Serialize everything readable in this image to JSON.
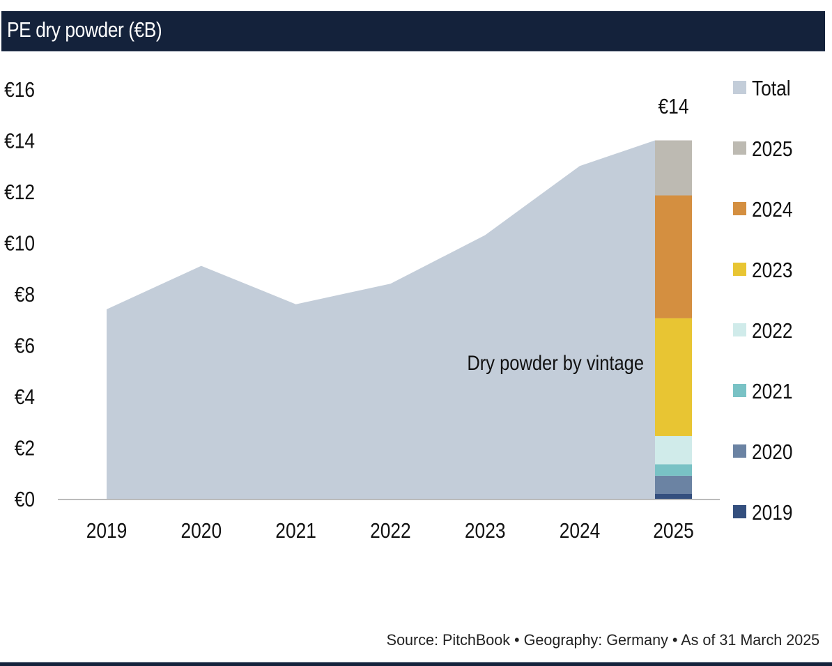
{
  "header": {
    "title": "PE dry powder (€B)"
  },
  "footer": {
    "source": "Source: PitchBook • Geography: Germany • As of 31 March 2025"
  },
  "colors": {
    "header_bg": "#14223b",
    "total": "#c3cdd9",
    "v2025": "#bdbab2",
    "v2024": "#d48f40",
    "v2023": "#e8c533",
    "v2022": "#d0ebea",
    "v2021": "#79c2c5",
    "v2020": "#6b83a3",
    "v2019": "#344f7e",
    "axis": "#bbbbbb"
  },
  "chart_data": {
    "type": "area",
    "title": "PE dry powder (€B)",
    "xlabel": "",
    "ylabel": "",
    "ylim": [
      0,
      16
    ],
    "yticks": [
      0,
      2,
      4,
      6,
      8,
      10,
      12,
      14,
      16
    ],
    "ytick_labels": [
      "€0",
      "€2",
      "€4",
      "€6",
      "€8",
      "€10",
      "€12",
      "€14",
      "€16"
    ],
    "categories": [
      "2019",
      "2020",
      "2021",
      "2022",
      "2023",
      "2024",
      "2025"
    ],
    "grid": false,
    "legend_position": "right",
    "series": [
      {
        "name": "Total",
        "type": "area",
        "color": "#c3cdd9",
        "values": [
          7.4,
          9.1,
          7.6,
          8.4,
          10.3,
          13.0,
          14.0
        ]
      }
    ],
    "stacked_bar": {
      "category": "2025",
      "total_label": "€14",
      "total": 14.0,
      "annotation": "Dry powder by vintage",
      "segments": [
        {
          "name": "2019",
          "value": 0.2,
          "color": "#344f7e"
        },
        {
          "name": "2020",
          "value": 0.7,
          "color": "#6b83a3"
        },
        {
          "name": "2021",
          "value": 0.45,
          "color": "#79c2c5"
        },
        {
          "name": "2022",
          "value": 1.1,
          "color": "#d0ebea"
        },
        {
          "name": "2023",
          "value": 4.6,
          "color": "#e8c533"
        },
        {
          "name": "2024",
          "value": 4.8,
          "color": "#d48f40"
        },
        {
          "name": "2025",
          "value": 2.15,
          "color": "#bdbab2"
        }
      ]
    },
    "legend": [
      {
        "label": "Total",
        "color": "#c3cdd9"
      },
      {
        "label": "2025",
        "color": "#bdbab2"
      },
      {
        "label": "2024",
        "color": "#d48f40"
      },
      {
        "label": "2023",
        "color": "#e8c533"
      },
      {
        "label": "2022",
        "color": "#d0ebea"
      },
      {
        "label": "2021",
        "color": "#79c2c5"
      },
      {
        "label": "2020",
        "color": "#6b83a3"
      },
      {
        "label": "2019",
        "color": "#344f7e"
      }
    ]
  }
}
